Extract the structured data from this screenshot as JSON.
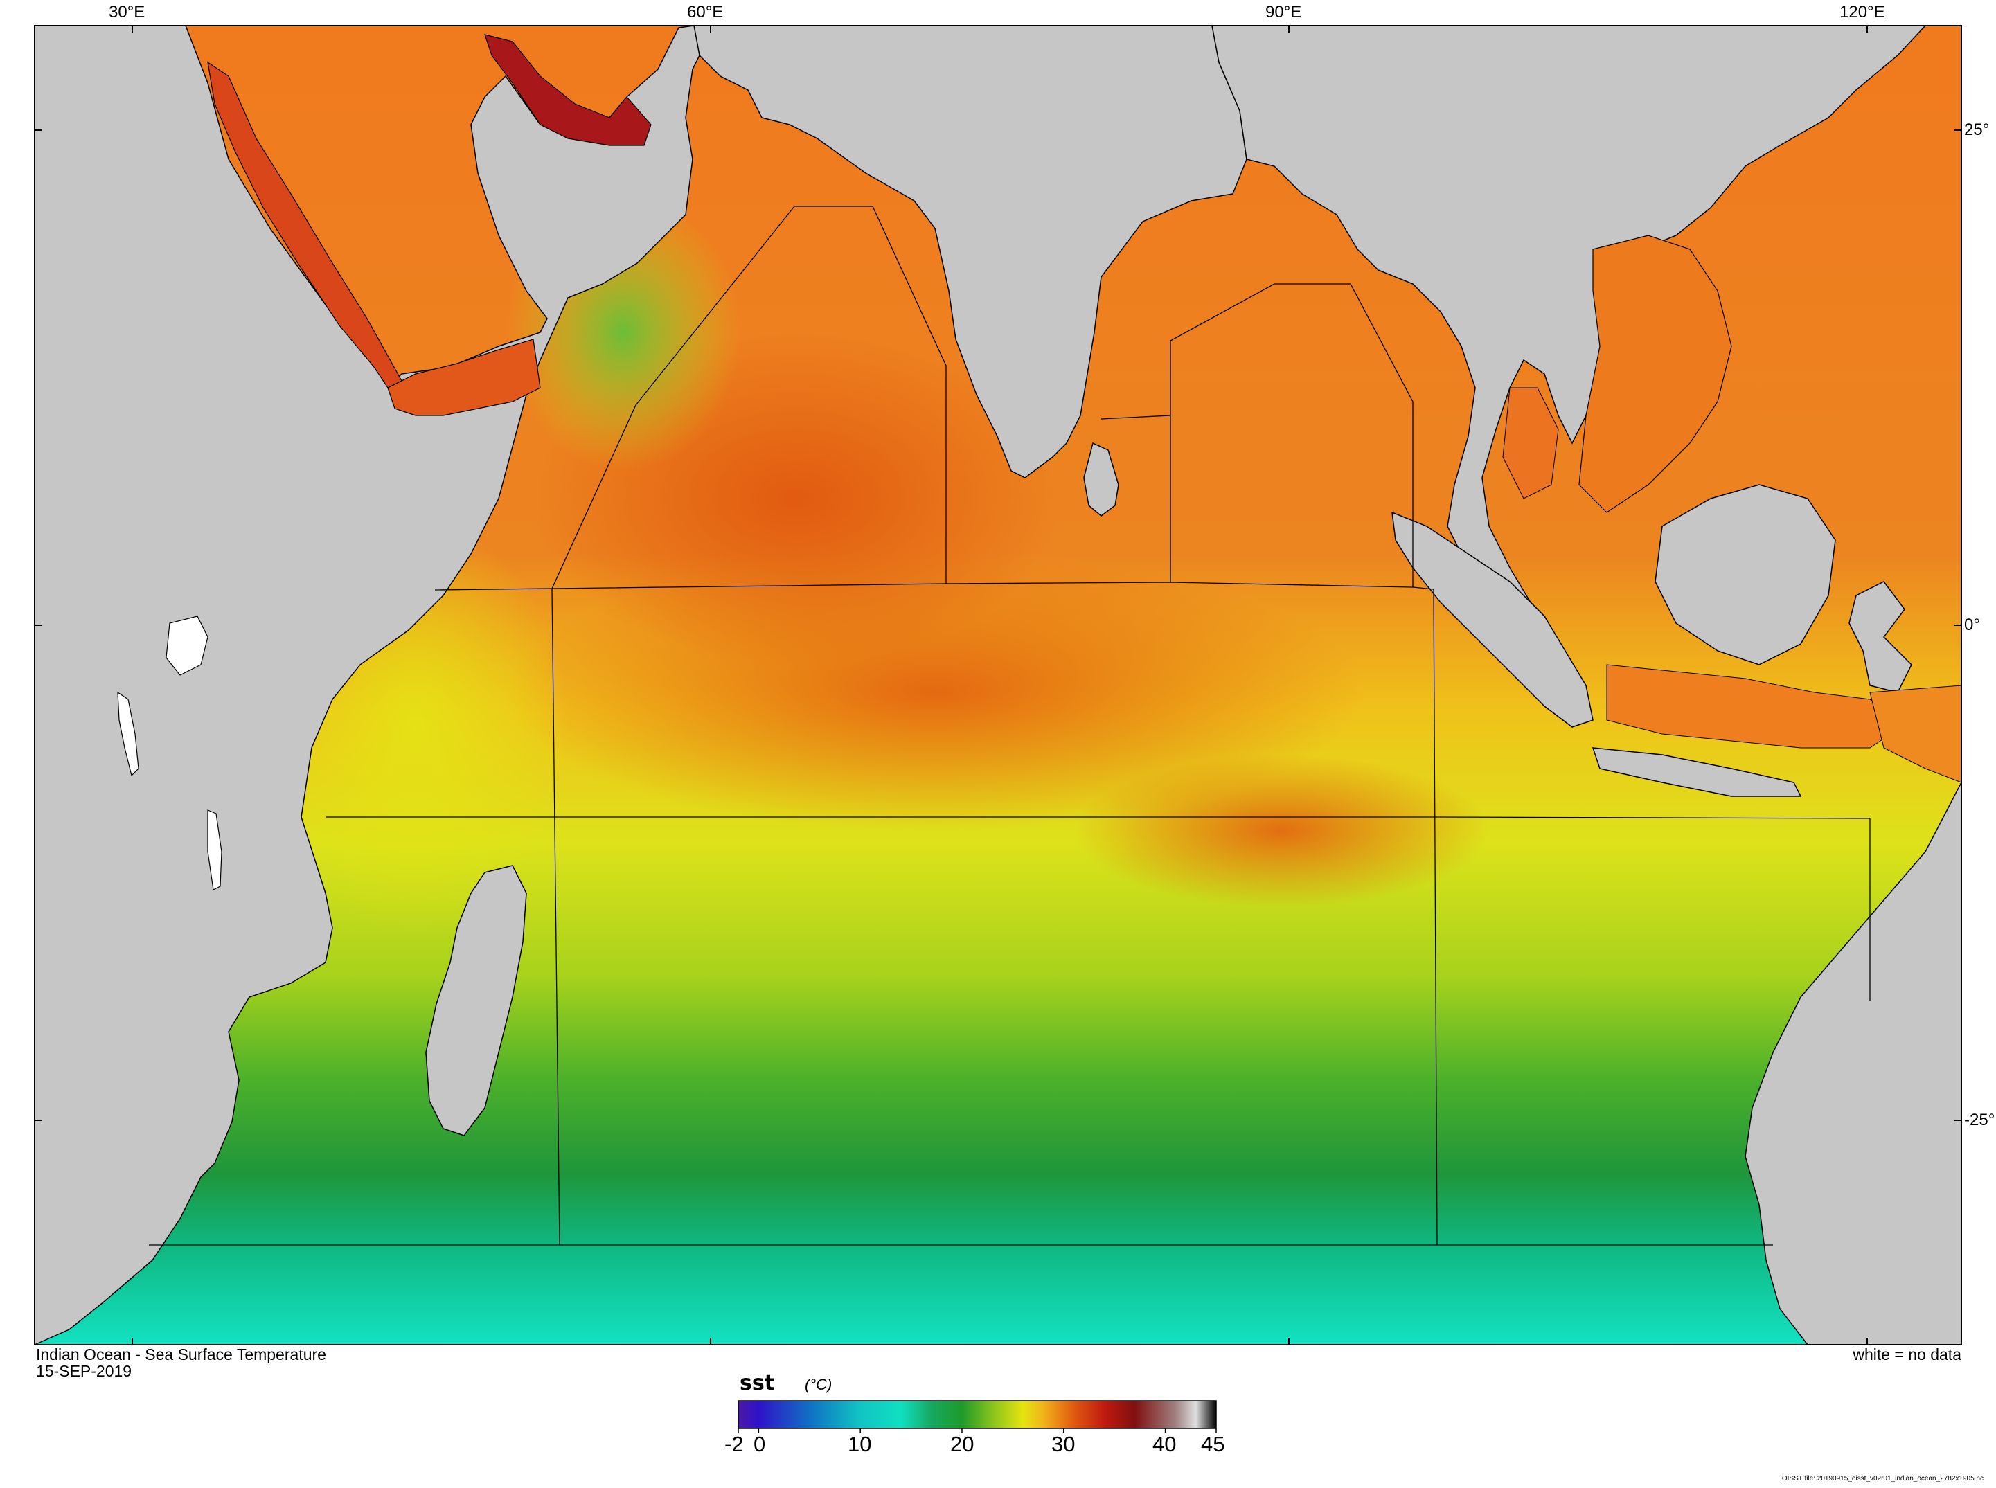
{
  "map": {
    "title": "Indian Ocean - Sea Surface Temperature",
    "date": "15-SEP-2019",
    "no_data_note": "white = no data",
    "file_note": "OISST file: 20190915_oisst_v02r01_indian_ocean_2782x1905.nc",
    "lon_labels": [
      "30°E",
      "60°E",
      "90°E",
      "120°E"
    ],
    "lat_labels": [
      "25°",
      "0°",
      "-25°"
    ],
    "colors": {
      "land": "#c6c6c6",
      "no_data": "#ffffff",
      "coastline": "#000000"
    }
  },
  "colorbar": {
    "variable": "sst",
    "unit": "(°C)",
    "tick_labels": [
      "-2",
      "0",
      "10",
      "20",
      "30",
      "40",
      "45"
    ],
    "range": [
      -2,
      45
    ],
    "stops": [
      {
        "value": -2,
        "color": "#4b1aa6"
      },
      {
        "value": 0,
        "color": "#2f12c8"
      },
      {
        "value": 5,
        "color": "#1070c4"
      },
      {
        "value": 10,
        "color": "#11c4c4"
      },
      {
        "value": 14,
        "color": "#10e0c0"
      },
      {
        "value": 17,
        "color": "#16a860"
      },
      {
        "value": 20,
        "color": "#1f9a2a"
      },
      {
        "value": 23,
        "color": "#88c41c"
      },
      {
        "value": 26,
        "color": "#e4e410"
      },
      {
        "value": 28,
        "color": "#f0b41a"
      },
      {
        "value": 31,
        "color": "#e05a10"
      },
      {
        "value": 34,
        "color": "#c01a10"
      },
      {
        "value": 37,
        "color": "#801010"
      },
      {
        "value": 41,
        "color": "#a08080"
      },
      {
        "value": 43,
        "color": "#e0e0e0"
      },
      {
        "value": 45,
        "color": "#000000"
      }
    ]
  }
}
